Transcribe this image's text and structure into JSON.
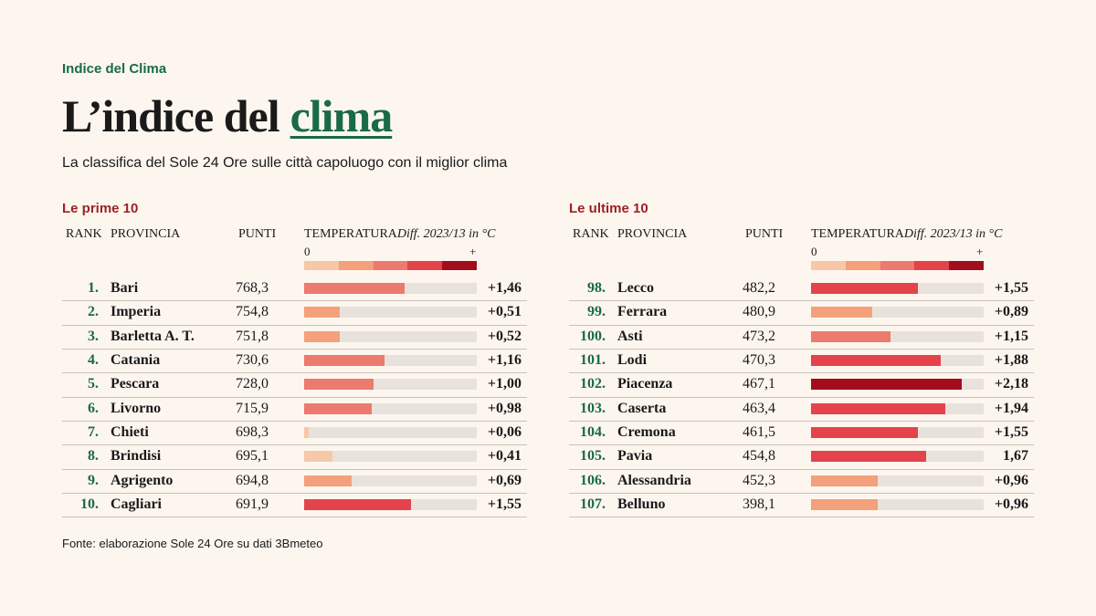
{
  "header": {
    "kicker": "Indice del Clima",
    "title": "L’indice del",
    "title_highlight": "clima",
    "subtitle": "La classifica del Sole 24 Ore sulle città capoluogo con il miglior clima"
  },
  "columns": {
    "rank": "RANK",
    "province": "PROVINCIA",
    "points": "PUNTI",
    "temperature": "TEMPERATURA",
    "temperature_note": "Diff. 2023/13 in °C"
  },
  "scale": {
    "min": 0,
    "max": 2.5,
    "max_label": "+",
    "colors": [
      "#f8c7a8",
      "#f4a07a",
      "#ec7a6e",
      "#e5434b",
      "#a10d1c"
    ]
  },
  "tables": [
    {
      "title": "Le prime 10",
      "rows": [
        {
          "rank": "1.",
          "province": "Bari",
          "points": "768,3",
          "temperature": 1.46,
          "temperature_label": "+1,46",
          "color": "#ec7a6e"
        },
        {
          "rank": "2.",
          "province": "Imperia",
          "points": "754,8",
          "temperature": 0.51,
          "temperature_label": "+0,51",
          "color": "#f4a07a"
        },
        {
          "rank": "3.",
          "province": "Barletta A. T.",
          "points": "751,8",
          "temperature": 0.52,
          "temperature_label": "+0,52",
          "color": "#f4a07a"
        },
        {
          "rank": "4.",
          "province": "Catania",
          "points": "730,6",
          "temperature": 1.16,
          "temperature_label": "+1,16",
          "color": "#ec7a6e"
        },
        {
          "rank": "5.",
          "province": "Pescara",
          "points": "728,0",
          "temperature": 1.0,
          "temperature_label": "+1,00",
          "color": "#ec7a6e"
        },
        {
          "rank": "6.",
          "province": "Livorno",
          "points": "715,9",
          "temperature": 0.98,
          "temperature_label": "+0,98",
          "color": "#ec7a6e"
        },
        {
          "rank": "7.",
          "province": "Chieti",
          "points": "698,3",
          "temperature": 0.06,
          "temperature_label": "+0,06",
          "color": "#f8c7a8"
        },
        {
          "rank": "8.",
          "province": "Brindisi",
          "points": "695,1",
          "temperature": 0.41,
          "temperature_label": "+0,41",
          "color": "#f8c7a8"
        },
        {
          "rank": "9.",
          "province": "Agrigento",
          "points": "694,8",
          "temperature": 0.69,
          "temperature_label": "+0,69",
          "color": "#f4a07a"
        },
        {
          "rank": "10.",
          "province": "Cagliari",
          "points": "691,9",
          "temperature": 1.55,
          "temperature_label": "+1,55",
          "color": "#e5434b"
        }
      ]
    },
    {
      "title": "Le ultime 10",
      "rows": [
        {
          "rank": "98.",
          "province": "Lecco",
          "points": "482,2",
          "temperature": 1.55,
          "temperature_label": "+1,55",
          "color": "#e5434b"
        },
        {
          "rank": "99.",
          "province": "Ferrara",
          "points": "480,9",
          "temperature": 0.89,
          "temperature_label": "+0,89",
          "color": "#f4a07a"
        },
        {
          "rank": "100.",
          "province": "Asti",
          "points": "473,2",
          "temperature": 1.15,
          "temperature_label": "+1,15",
          "color": "#ec7a6e"
        },
        {
          "rank": "101.",
          "province": "Lodi",
          "points": "470,3",
          "temperature": 1.88,
          "temperature_label": "+1,88",
          "color": "#e5434b"
        },
        {
          "rank": "102.",
          "province": "Piacenza",
          "points": "467,1",
          "temperature": 2.18,
          "temperature_label": "+2,18",
          "color": "#a10d1c"
        },
        {
          "rank": "103.",
          "province": "Caserta",
          "points": "463,4",
          "temperature": 1.94,
          "temperature_label": "+1,94",
          "color": "#e5434b"
        },
        {
          "rank": "104.",
          "province": "Cremona",
          "points": "461,5",
          "temperature": 1.55,
          "temperature_label": "+1,55",
          "color": "#e5434b"
        },
        {
          "rank": "105.",
          "province": "Pavia",
          "points": "454,8",
          "temperature": 1.67,
          "temperature_label": "1,67",
          "color": "#e5434b"
        },
        {
          "rank": "106.",
          "province": "Alessandria",
          "points": "452,3",
          "temperature": 0.96,
          "temperature_label": "+0,96",
          "color": "#f4a07a"
        },
        {
          "rank": "107.",
          "province": "Belluno",
          "points": "398,1",
          "temperature": 0.96,
          "temperature_label": "+0,96",
          "color": "#f4a07a"
        }
      ]
    }
  ],
  "source": "Fonte: elaborazione Sole 24 Ore su dati 3Bmeteo"
}
